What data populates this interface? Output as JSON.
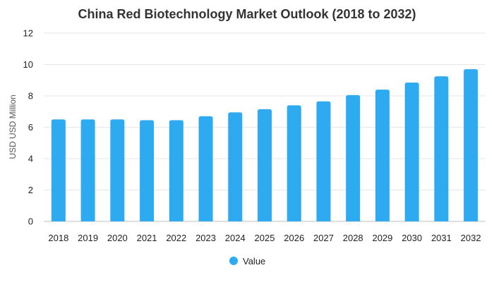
{
  "chart_data": {
    "type": "bar",
    "title": "China Red Biotechnology Market Outlook (2018 to 2032)",
    "xlabel": "",
    "ylabel": "USD USD Million",
    "categories": [
      "2018",
      "2019",
      "2020",
      "2021",
      "2022",
      "2023",
      "2024",
      "2025",
      "2026",
      "2027",
      "2028",
      "2029",
      "2030",
      "2031",
      "2032"
    ],
    "series": [
      {
        "name": "Value",
        "values": [
          6.5,
          6.5,
          6.5,
          6.45,
          6.45,
          6.7,
          6.95,
          7.15,
          7.4,
          7.65,
          8.05,
          8.4,
          8.85,
          9.25,
          9.7
        ],
        "color": "#2eaaf0"
      }
    ],
    "ylim": [
      0,
      12
    ],
    "yticks": [
      0,
      2,
      4,
      6,
      8,
      10,
      12
    ],
    "grid": true,
    "legend_position": "bottom-center",
    "colors": {
      "grid": "#e6e6e6",
      "axis": "#bfbfbf"
    }
  }
}
